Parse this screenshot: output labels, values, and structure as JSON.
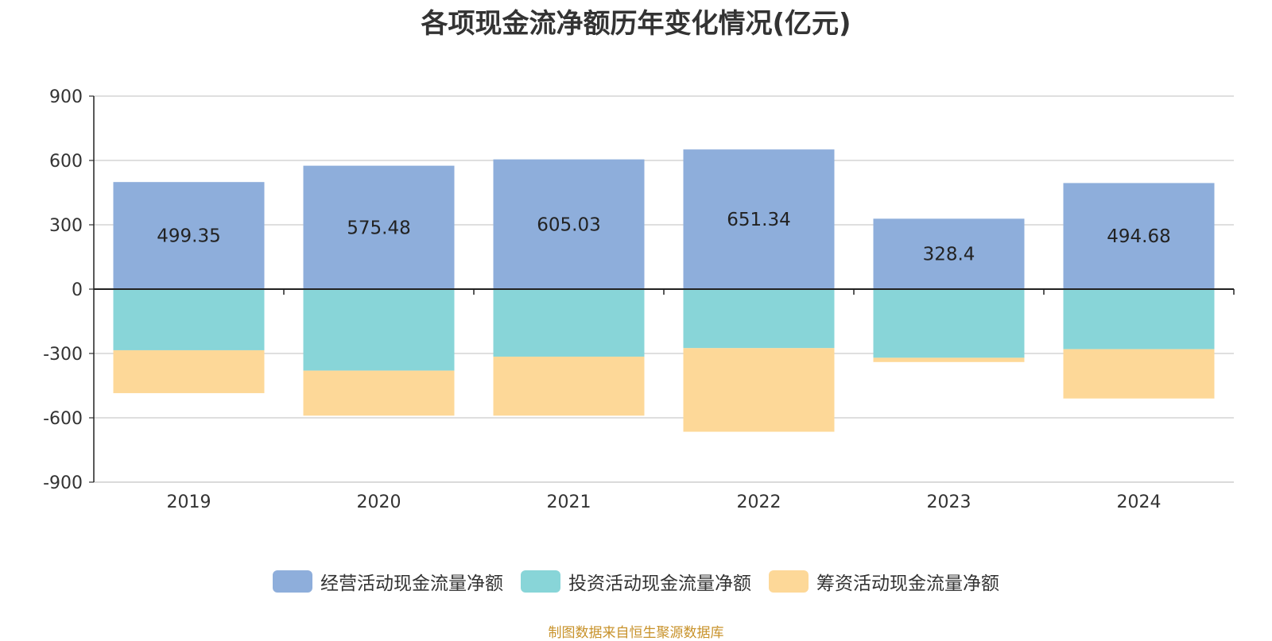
{
  "chart_data": {
    "type": "bar",
    "stacked": true,
    "title": "各项现金流净额历年变化情况(亿元)",
    "categories": [
      "2019",
      "2020",
      "2021",
      "2022",
      "2023",
      "2024"
    ],
    "series": [
      {
        "name": "经营活动现金流量净额",
        "color": "#8eaedb",
        "values": [
          499.35,
          575.48,
          605.03,
          651.34,
          328.4,
          494.68
        ],
        "labels": [
          "499.35",
          "575.48",
          "605.03",
          "651.34",
          "328.4",
          "494.68"
        ]
      },
      {
        "name": "投资活动现金流量净额",
        "color": "#88d5d8",
        "values": [
          -285,
          -380,
          -315,
          -275,
          -320,
          -280
        ]
      },
      {
        "name": "筹资活动现金流量净额",
        "color": "#fdd898",
        "values": [
          -200,
          -210,
          -275,
          -390,
          -20,
          -230
        ]
      }
    ],
    "ylim": [
      -900,
      900
    ],
    "yticks": [
      900,
      600,
      300,
      0,
      -300,
      -600,
      -900
    ],
    "ytick_labels": [
      "900",
      "600",
      "300",
      "0",
      "-300",
      "-600",
      "-900"
    ],
    "grid": true,
    "legend_position": "bottom"
  },
  "source_text": "制图数据来自恒生聚源数据库"
}
